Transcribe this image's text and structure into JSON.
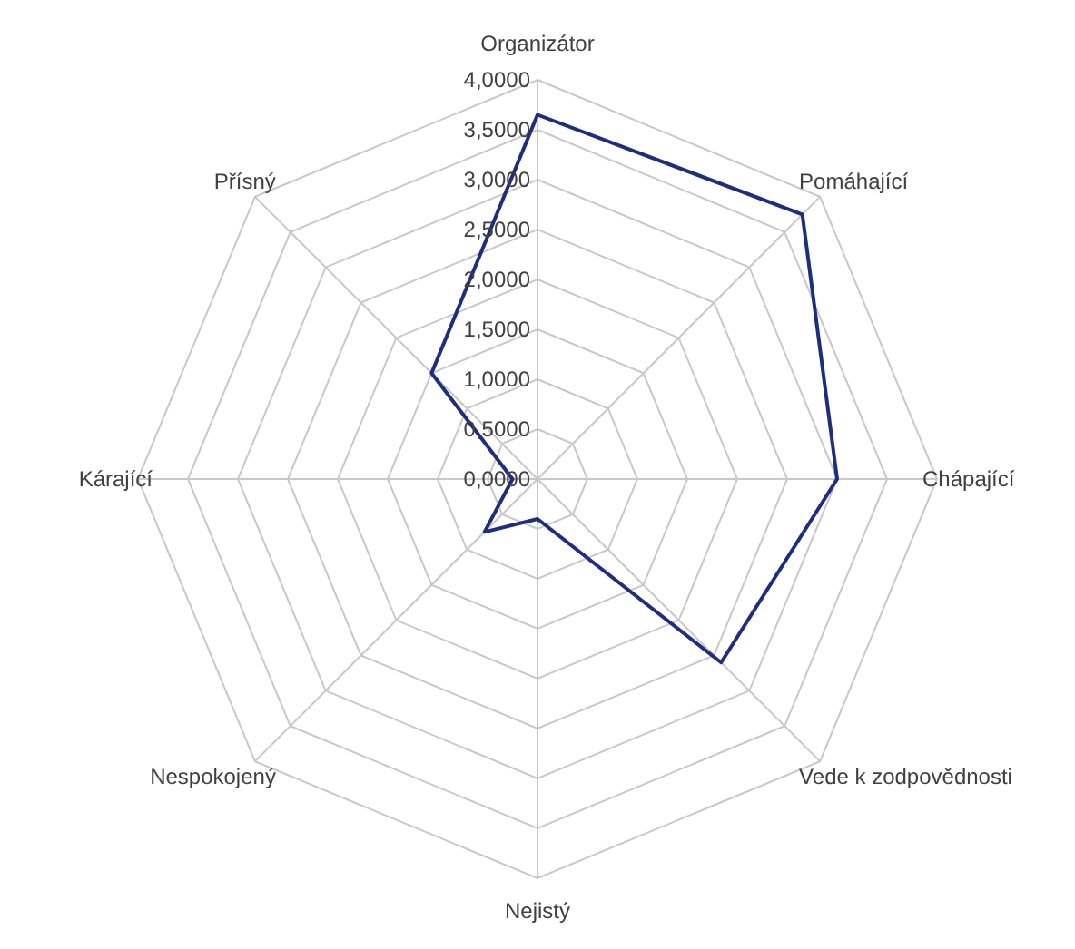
{
  "chart_data": {
    "type": "radar",
    "categories": [
      "Organizátor",
      "Pomáhající",
      "Chápající",
      "Vede k zodpovědnosti",
      "Nejistý",
      "Nespokojený",
      "Kárající",
      "Přísný"
    ],
    "series": [
      {
        "color": "#1b2f7e",
        "values": [
          3.65,
          3.75,
          3.0,
          2.6,
          0.4,
          0.75,
          0.25,
          1.5
        ]
      }
    ],
    "ylim": [
      0,
      4
    ],
    "yticks": [
      {
        "value": 0,
        "label": "0,0000"
      },
      {
        "value": 0.5,
        "label": "0,5000"
      },
      {
        "value": 1,
        "label": "1,0000"
      },
      {
        "value": 1.5,
        "label": "1,5000"
      },
      {
        "value": 2,
        "label": "2,0000"
      },
      {
        "value": 2.5,
        "label": "2,5000"
      },
      {
        "value": 3,
        "label": "3,0000"
      },
      {
        "value": 3.5,
        "label": "3,5000"
      },
      {
        "value": 4,
        "label": "4,0000"
      }
    ],
    "grid": true,
    "marker": "none"
  }
}
